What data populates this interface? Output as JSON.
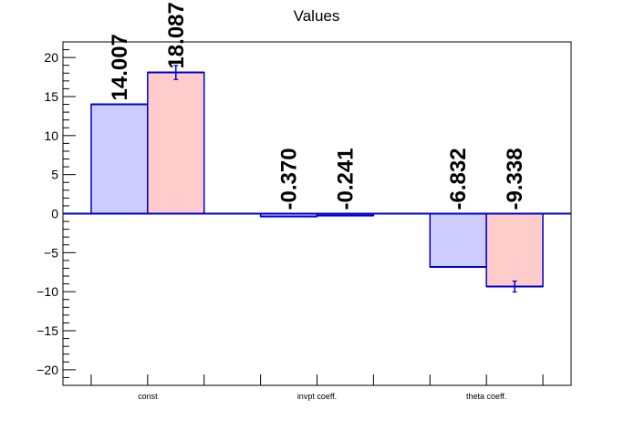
{
  "chart_data": {
    "type": "bar",
    "title": "Values",
    "xlabel": "",
    "ylabel": "",
    "ylim": [
      -22,
      22
    ],
    "yticks": [
      -20,
      -15,
      -10,
      -5,
      0,
      5,
      10,
      15,
      20
    ],
    "ytick_labels": [
      "−20",
      "−15",
      "−10",
      "−5",
      "0",
      "5",
      "10",
      "15",
      "20"
    ],
    "categories": [
      "const",
      "invpt coeff.",
      "theta coeff."
    ],
    "series": [
      {
        "values": [
          14.007,
          -0.37,
          -6.832
        ],
        "labels": [
          "14.007",
          "-0.370",
          "-6.832"
        ],
        "errors": [
          0,
          0,
          0
        ],
        "fill": "#ccccff",
        "stroke": "#0000cc"
      },
      {
        "values": [
          18.087,
          -0.241,
          -9.338
        ],
        "labels": [
          "18.087",
          "-0.241",
          "-9.338"
        ],
        "errors": [
          0.9,
          0,
          0.7
        ],
        "fill": "#ffcccc",
        "stroke": "#0000cc"
      }
    ],
    "zero_line_color": "#0000cc",
    "grid": false,
    "legend": "none"
  }
}
